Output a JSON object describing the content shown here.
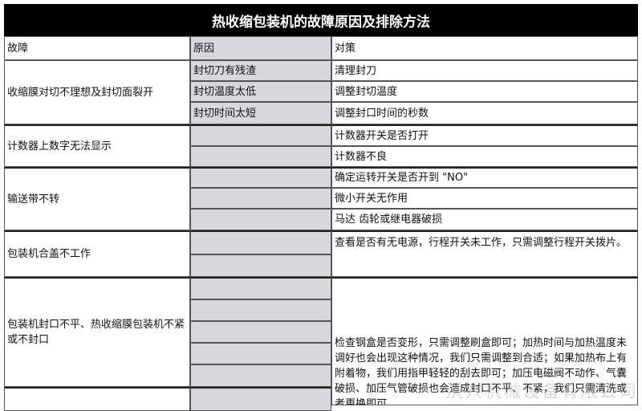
{
  "title": "热收缩包装机的故障原因及排除方法",
  "headers": {
    "fault": "故障",
    "cause": "原因",
    "solution": "对策"
  },
  "groups": [
    {
      "fault": "收缩膜对切不理想及封切面裂开",
      "rows": [
        {
          "cause": "封切刀有残渣",
          "solution": "清理封刀"
        },
        {
          "cause": "封切温度太低",
          "solution": "调整封切温度"
        },
        {
          "cause": "封切时间太短",
          "solution": "调整封口时间的秒数"
        }
      ]
    },
    {
      "fault": "计数器上数字无法显示",
      "rows": [
        {
          "cause": "",
          "solution": "计数器开关是否打开"
        },
        {
          "cause": "",
          "solution": "计数器不良"
        }
      ]
    },
    {
      "fault": "输送带不转",
      "rows": [
        {
          "cause": "",
          "solution": "确定运转开关是否开到 \"NO\""
        },
        {
          "cause": "",
          "solution": "微小开关无作用"
        },
        {
          "cause": "",
          "solution": "马达 齿轮或继电器破损"
        }
      ]
    },
    {
      "fault": "包装机合盖不工作",
      "solution": "查看是否有无电源，行程开关未工作，只需调整行程开关拨片。"
    },
    {
      "fault": "包装机封口不平、热收缩膜包装机不紧或不封口",
      "solution": "检查钢盒是否变形，只需调整刷盒即可；加热时间与加热温度未调好也会出现这种情况，我们只需调整到合适；如果加热布上有附着物，我们用指甲轻轻的刮去即可；加压电磁阀不动作、气囊破损、加压气管破损也会造成封口不平、不紧，我们只需清洗或者更换即可."
    }
  ],
  "watermark": "沃兴机械设备有限公司",
  "colors": {
    "title_bg": "#000000",
    "cause_bg": "#d8d8dc"
  }
}
